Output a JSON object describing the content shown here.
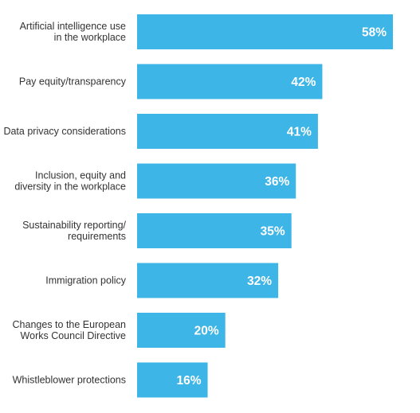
{
  "chart_data": {
    "type": "bar",
    "orientation": "horizontal",
    "categories": [
      [
        "Artificial intelligence use",
        "in the workplace"
      ],
      [
        "Pay equity/transparency"
      ],
      [
        "Data privacy considerations"
      ],
      [
        "Inclusion, equity and",
        "diversity in the workplace"
      ],
      [
        "Sustainability reporting/",
        "requirements"
      ],
      [
        "Immigration policy"
      ],
      [
        "Changes to the European",
        "Works Council Directive"
      ],
      [
        "Whistleblower protections"
      ]
    ],
    "values": [
      58,
      42,
      41,
      36,
      35,
      32,
      20,
      16
    ],
    "value_labels": [
      "58%",
      "42%",
      "41%",
      "36%",
      "35%",
      "32%",
      "20%",
      "16%"
    ],
    "xlim": [
      0,
      58
    ],
    "grid": false,
    "bar_color": "#3db5e6",
    "label_color": "#333333",
    "value_label_color": "#ffffff"
  }
}
